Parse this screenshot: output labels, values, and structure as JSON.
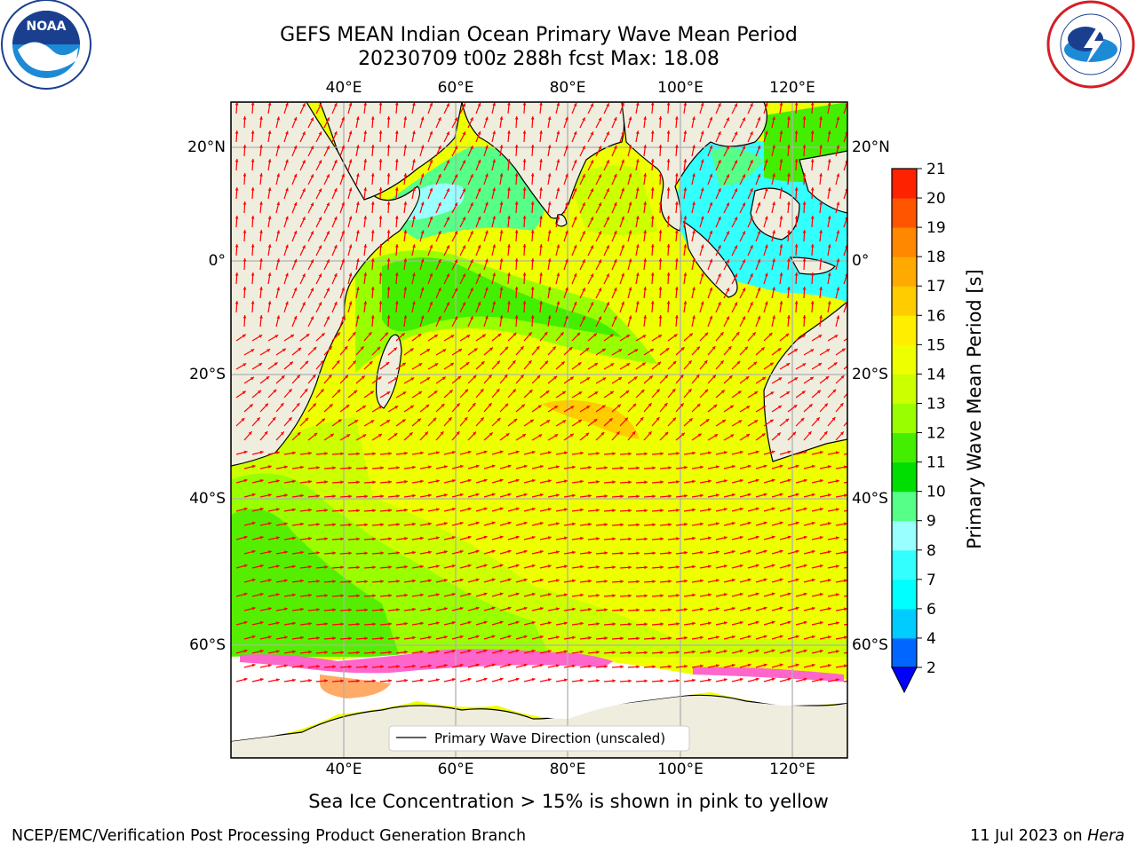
{
  "title_line1": "GEFS MEAN Indian Ocean Primary Wave Mean Period",
  "title_line2": "20230709 t00z 288h fcst   Max: 18.08",
  "lon_ticks": [
    "40°E",
    "60°E",
    "80°E",
    "100°E",
    "120°E"
  ],
  "lat_ticks": [
    "20°N",
    "0°",
    "20°S",
    "40°S",
    "60°S"
  ],
  "legend_label": "Primary Wave Direction (unscaled)",
  "colorbar": {
    "label": "Primary Wave Mean Period [s]",
    "ticks": [
      "2",
      "4",
      "6",
      "7",
      "8",
      "9",
      "10",
      "11",
      "12",
      "13",
      "14",
      "15",
      "16",
      "17",
      "18",
      "19",
      "20",
      "21"
    ],
    "colors": [
      "#0066ff",
      "#00ccff",
      "#00ffff",
      "#33ffff",
      "#99ffff",
      "#55ff88",
      "#00dd00",
      "#44ee00",
      "#99ff00",
      "#ccff00",
      "#eeff00",
      "#ffee00",
      "#ffcc00",
      "#ffaa00",
      "#ff8800",
      "#ff5500",
      "#ff2200"
    ],
    "under_color": "#0000ff"
  },
  "sea_ice_note": "Sea Ice Concentration > 15% is shown in pink to yellow",
  "footer_left": "NCEP/EMC/Verification Post Processing Product Generation Branch",
  "footer_right_prefix": "11 Jul 2023 on ",
  "footer_right_host": "Hera",
  "colors": {
    "land": "#efedde",
    "ice": "#ffffff",
    "arrow": "#ff0000",
    "grid": "#b0b0b0"
  },
  "logos": {
    "left": "NOAA",
    "right_icon": "national-weather-service-logo"
  }
}
